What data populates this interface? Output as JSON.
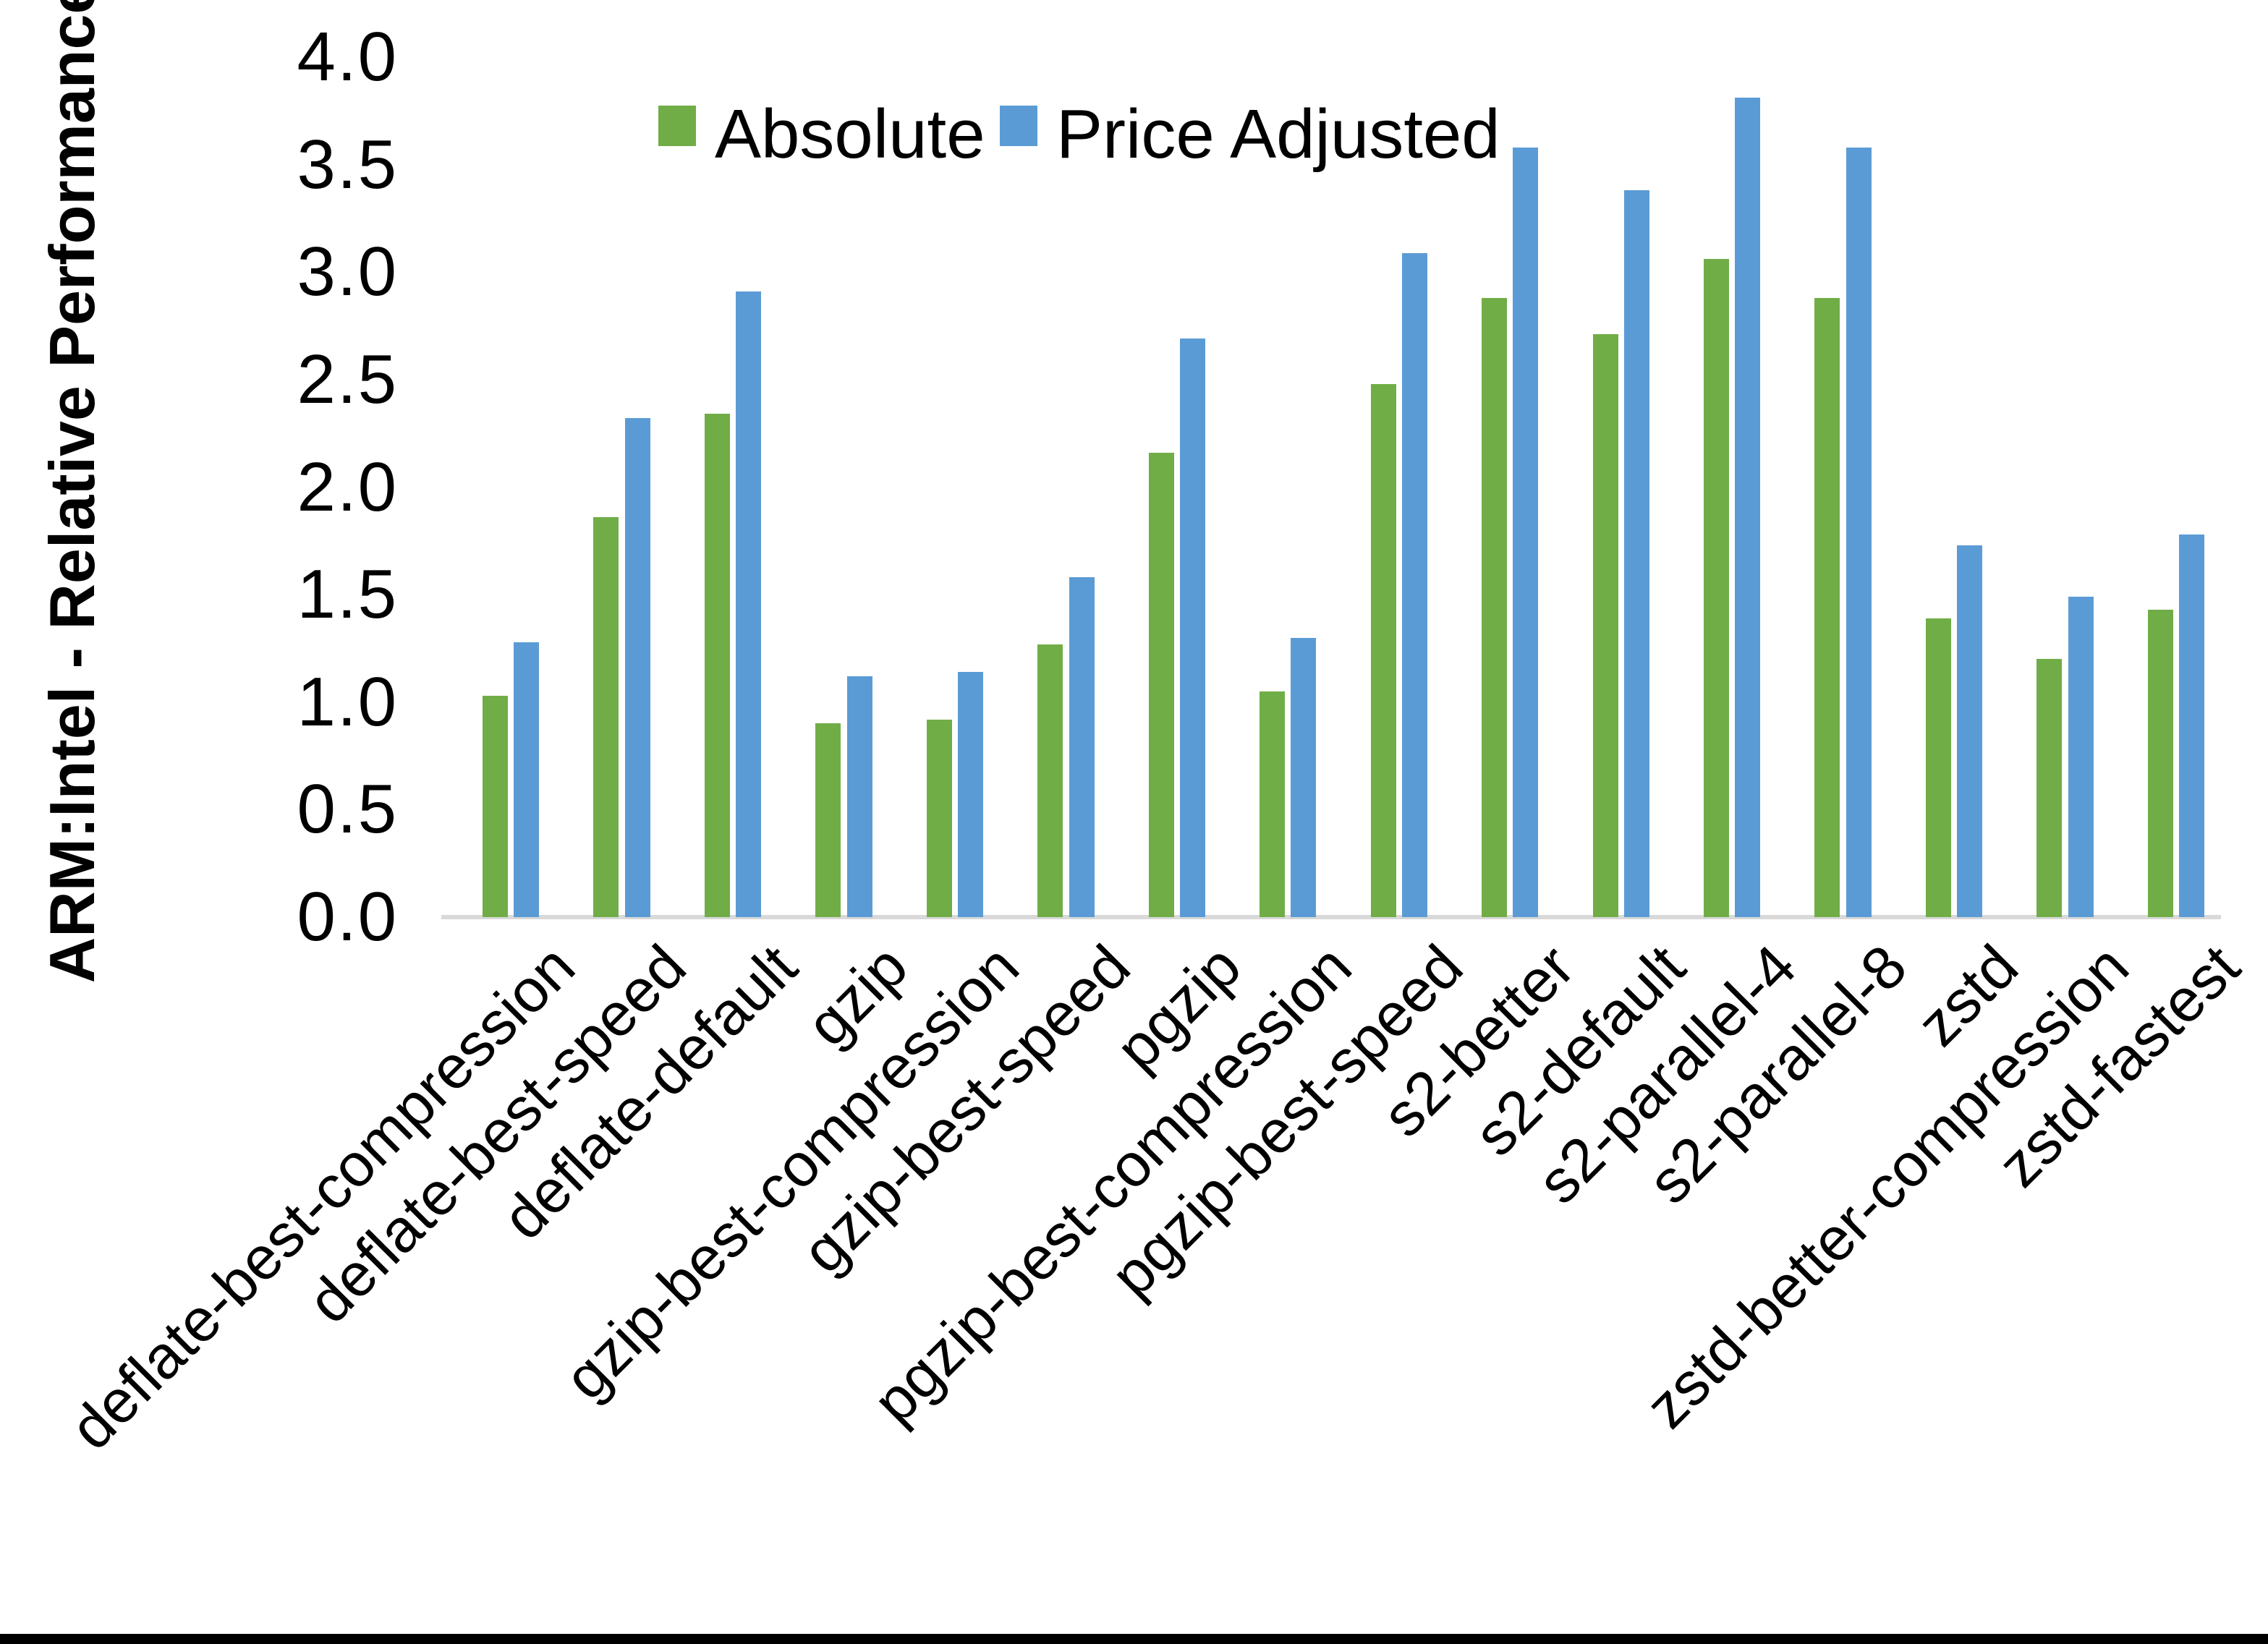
{
  "chart_data": {
    "type": "bar",
    "title": "",
    "xlabel": "",
    "ylabel": "ARM:Intel - Relative Performance",
    "ylim": [
      0.0,
      4.0
    ],
    "ytick_labels": [
      "0.0",
      "0.5",
      "1.0",
      "1.5",
      "2.0",
      "2.5",
      "3.0",
      "3.5",
      "4.0"
    ],
    "grid": false,
    "legend_position": "top-center",
    "categories": [
      "deflate-best-compression",
      "deflate-best-speed",
      "deflate-default",
      "gzip",
      "gzip-best-compression",
      "gzip-best-speed",
      "pgzip",
      "pgzip-best-compression",
      "pgzip-best-speed",
      "s2-better",
      "s2-default",
      "s2-parallel-4",
      "s2-parallel-8",
      "zstd",
      "zstd-better-compression",
      "zstd-fastest"
    ],
    "series": [
      {
        "name": "Absolute",
        "color": "#70AD47",
        "values": [
          1.03,
          1.86,
          2.34,
          0.9,
          0.92,
          1.27,
          2.16,
          1.05,
          2.48,
          2.88,
          2.71,
          3.06,
          2.88,
          1.39,
          1.2,
          1.43
        ]
      },
      {
        "name": "Price Adjusted",
        "color": "#5B9BD5",
        "values": [
          1.28,
          2.32,
          2.91,
          1.12,
          1.14,
          1.58,
          2.69,
          1.3,
          3.09,
          3.58,
          3.38,
          3.81,
          3.58,
          1.73,
          1.49,
          1.78
        ]
      }
    ]
  },
  "colors": {
    "background": "#ffffff",
    "axis_line": "#d9d9d9",
    "text": "#000000",
    "bottom_border": "#000000"
  }
}
